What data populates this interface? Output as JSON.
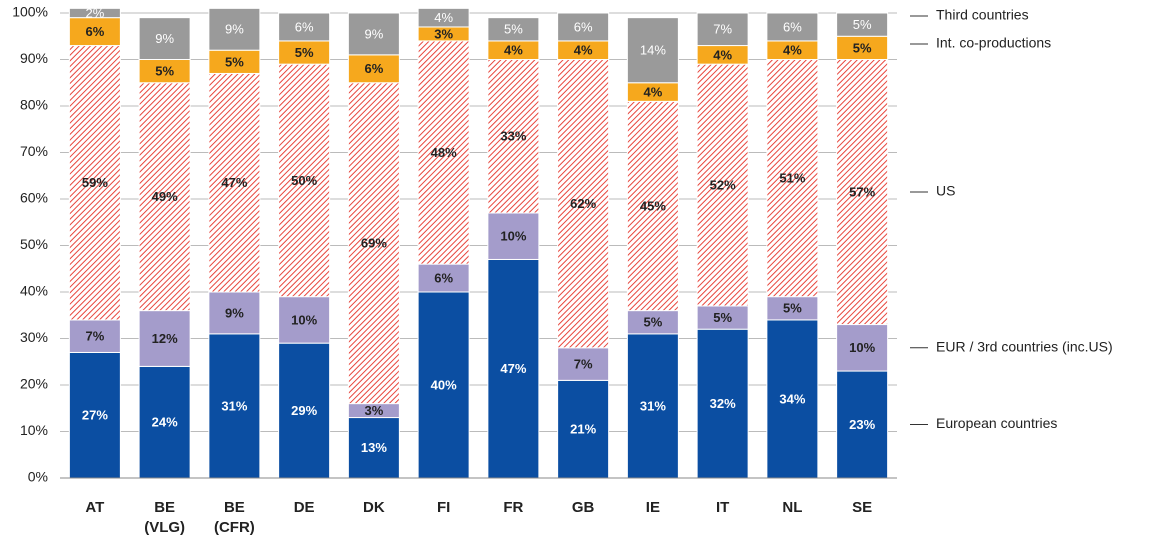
{
  "chart_data": {
    "type": "stacked_bar",
    "categories": [
      "AT",
      "BE (VLG)",
      "BE (CFR)",
      "DE",
      "DK",
      "FI",
      "FR",
      "GB",
      "IE",
      "IT",
      "NL",
      "SE"
    ],
    "series": [
      {
        "name": "European countries",
        "color": "#0b4ea2",
        "values": [
          27,
          24,
          31,
          29,
          13,
          40,
          47,
          21,
          31,
          32,
          34,
          23
        ],
        "value_labels": [
          "27%",
          "24%",
          "31%",
          "29%",
          "13%",
          "40%",
          "47%",
          "21%",
          "31%",
          "32%",
          "34%",
          "23%"
        ]
      },
      {
        "name": "EUR / 3rd countries (inc.US)",
        "color": "#a49ccb",
        "values": [
          7,
          12,
          9,
          10,
          3,
          6,
          10,
          7,
          5,
          5,
          5,
          10
        ],
        "value_labels": [
          "7%",
          "12%",
          "9%",
          "10%",
          "3%",
          "6%",
          "10%",
          "7%",
          "5%",
          "5%",
          "5%",
          "10%"
        ]
      },
      {
        "name": "US",
        "color": "#e8453c",
        "hatch": true,
        "values": [
          59,
          49,
          47,
          50,
          69,
          48,
          33,
          62,
          45,
          52,
          51,
          57
        ],
        "value_labels": [
          "59%",
          "49%",
          "47%",
          "50%",
          "69%",
          "48%",
          "33%",
          "62%",
          "45%",
          "52%",
          "51%",
          "57%"
        ]
      },
      {
        "name": "Int. co-productions",
        "color": "#f6a81d",
        "values": [
          6,
          5,
          5,
          5,
          6,
          3,
          4,
          4,
          4,
          4,
          4,
          5
        ],
        "value_labels": [
          "6%",
          "5%",
          "5%",
          "5%",
          "6%",
          "3%",
          "4%",
          "4%",
          "4%",
          "4%",
          "4%",
          "5%"
        ]
      },
      {
        "name": "Third countries",
        "color": "#9a9a9a",
        "values": [
          2,
          9,
          9,
          6,
          9,
          4,
          5,
          6,
          14,
          7,
          6,
          5
        ],
        "value_labels": [
          "2%",
          "9%",
          "9%",
          "6%",
          "9%",
          "4%",
          "5%",
          "6%",
          "14%",
          "7%",
          "6%",
          "5%"
        ]
      }
    ],
    "ylim": [
      0,
      100
    ],
    "yticks": [
      {
        "value": 0,
        "label": "0%"
      },
      {
        "value": 10,
        "label": "10%"
      },
      {
        "value": 20,
        "label": "20%"
      },
      {
        "value": 30,
        "label": "30%"
      },
      {
        "value": 40,
        "label": "40%"
      },
      {
        "value": 50,
        "label": "50%"
      },
      {
        "value": 60,
        "label": "60%"
      },
      {
        "value": 70,
        "label": "70%"
      },
      {
        "value": 80,
        "label": "80%"
      },
      {
        "value": 90,
        "label": "90%"
      },
      {
        "value": 100,
        "label": "100%"
      }
    ],
    "legend": "right"
  }
}
